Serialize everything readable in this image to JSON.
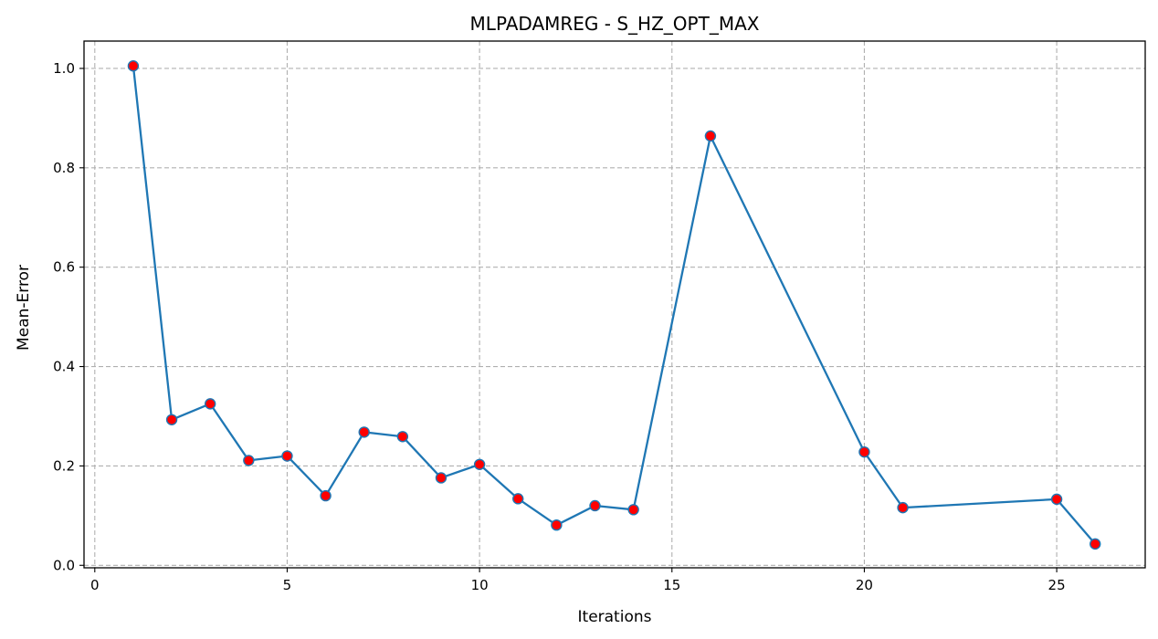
{
  "chart_data": {
    "type": "line",
    "title": "MLPADAMREG - S_HZ_OPT_MAX",
    "xlabel": "Iterations",
    "ylabel": "Mean-Error",
    "xlim": [
      -0.28,
      27.3
    ],
    "ylim": [
      -0.005,
      1.055
    ],
    "xticks": [
      0,
      5,
      10,
      15,
      20,
      25
    ],
    "yticks": [
      0.0,
      0.2,
      0.4,
      0.6,
      0.8,
      1.0
    ],
    "xtick_labels": [
      "0",
      "5",
      "10",
      "15",
      "20",
      "25"
    ],
    "ytick_labels": [
      "0.0",
      "0.2",
      "0.4",
      "0.6",
      "0.8",
      "1.0"
    ],
    "grid": true,
    "series": [
      {
        "x": [
          1,
          2,
          3,
          4,
          5,
          6,
          7,
          8,
          9,
          10,
          11,
          12,
          13,
          14,
          16,
          20,
          21,
          25,
          26
        ],
        "y": [
          1.005,
          0.293,
          0.325,
          0.211,
          0.22,
          0.14,
          0.268,
          0.259,
          0.176,
          0.203,
          0.134,
          0.081,
          0.12,
          0.112,
          0.864,
          0.228,
          0.116,
          0.133,
          0.043
        ]
      }
    ],
    "colors": {
      "line": "#1f77b4",
      "marker_fill": "#ff0000",
      "marker_edge": "#1f77b4",
      "grid": "#b0b0b0"
    }
  }
}
